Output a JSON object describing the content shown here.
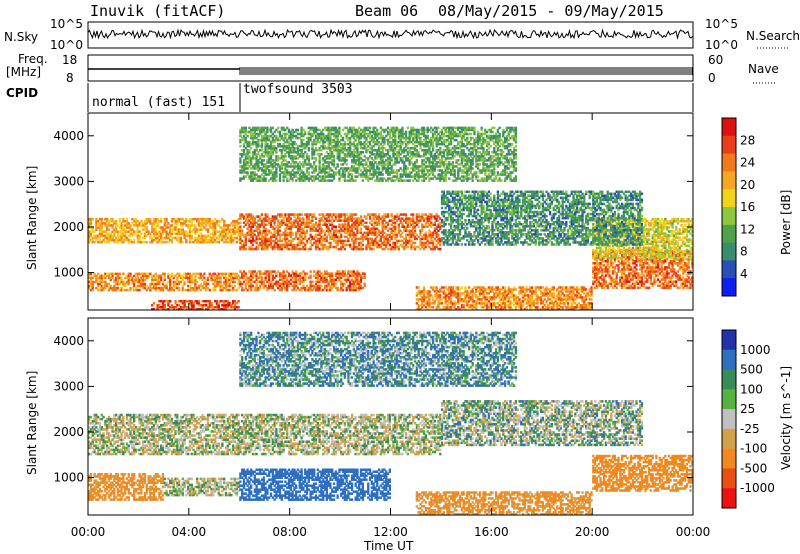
{
  "header": {
    "site": "Inuvik (fitACF)",
    "beam": "Beam 06",
    "date_range": "08/May/2015 - 09/May/2015"
  },
  "nsky_panel": {
    "left_label": "N.Sky",
    "right_label": "N.Search",
    "left_ticks": [
      "10^5",
      "10^0"
    ],
    "right_ticks": [
      "10^5",
      "10^0"
    ]
  },
  "freq_panel": {
    "left_label_1": "Freq.",
    "left_label_2": "[MHz]",
    "right_label": "Nave",
    "left_ticks": [
      "18",
      "8"
    ],
    "right_ticks": [
      "60",
      "0"
    ]
  },
  "cpid_panel": {
    "label": "CPID",
    "segments": [
      {
        "name": "normal (fast) 151",
        "start": "00:00",
        "end": "06:00"
      },
      {
        "name": "twofsound 3503",
        "start": "06:00",
        "end": "24:00"
      }
    ]
  },
  "colors": {
    "power": [
      "#0a1ff0",
      "#2a4fb8",
      "#3a8c6e",
      "#4fa24a",
      "#8dc63f",
      "#f2d21a",
      "#f5a623",
      "#f07a1a",
      "#e8401a",
      "#dd1111"
    ],
    "velocity": [
      "#2233aa",
      "#2f6fbf",
      "#3a8a5a",
      "#56b23f",
      "#c0c0c0",
      "#d2a14a",
      "#f08a20",
      "#e85010",
      "#ee1111"
    ]
  },
  "chart_data": [
    {
      "type": "heatmap",
      "title": "",
      "xlabel": "Time UT",
      "ylabel": "Slant Range [km]",
      "colorbar_label": "Power [dB]",
      "colorbar_ticks": [
        "28",
        "24",
        "20",
        "16",
        "12",
        "8",
        "4"
      ],
      "yticks": [
        "4000",
        "3000",
        "2000",
        "1000"
      ],
      "xticks": [
        "00:00",
        "04:00",
        "08:00",
        "12:00",
        "16:00",
        "20:00",
        "00:00"
      ],
      "ylim": [
        180,
        4500
      ],
      "xlim": [
        0,
        24
      ],
      "bands": [
        {
          "t0": 0,
          "t1": 6,
          "r0": 1650,
          "r1": 2200,
          "power": 20
        },
        {
          "t0": 0,
          "t1": 6,
          "r0": 600,
          "r1": 1000,
          "power": 22
        },
        {
          "t0": 2.5,
          "t1": 6,
          "r0": 180,
          "r1": 400,
          "power": 26
        },
        {
          "t0": 6,
          "t1": 14,
          "r0": 1500,
          "r1": 2300,
          "power": 24
        },
        {
          "t0": 6,
          "t1": 11,
          "r0": 600,
          "r1": 1050,
          "power": 24
        },
        {
          "t0": 13,
          "t1": 20,
          "r0": 180,
          "r1": 700,
          "power": 22
        },
        {
          "t0": 20,
          "t1": 24,
          "r0": 650,
          "r1": 1500,
          "power": 24
        },
        {
          "t0": 20,
          "t1": 24,
          "r0": 1300,
          "r1": 2200,
          "power": 16
        },
        {
          "t0": 14,
          "t1": 22,
          "r0": 1600,
          "r1": 2800,
          "power": 8
        },
        {
          "t0": 6,
          "t1": 17,
          "r0": 3000,
          "r1": 4200,
          "power": 10
        }
      ]
    },
    {
      "type": "heatmap",
      "title": "",
      "xlabel": "Time UT",
      "ylabel": "Slant Range [km]",
      "colorbar_label": "Velocity [m s^-1]",
      "colorbar_ticks": [
        "1000",
        "500",
        "100",
        "25",
        "-25",
        "-100",
        "-500",
        "-1000"
      ],
      "yticks": [
        "4000",
        "3000",
        "2000",
        "1000"
      ],
      "xticks": [
        "00:00",
        "04:00",
        "08:00",
        "12:00",
        "16:00",
        "20:00",
        "00:00"
      ],
      "ylim": [
        180,
        4500
      ],
      "xlim": [
        0,
        24
      ],
      "bands": [
        {
          "t0": 0,
          "t1": 14,
          "r0": 1500,
          "r1": 2400,
          "velocity": 0
        },
        {
          "t0": 0,
          "t1": 3,
          "r0": 500,
          "r1": 1100,
          "velocity": -150
        },
        {
          "t0": 3,
          "t1": 6,
          "r0": 600,
          "r1": 1000,
          "velocity": 0
        },
        {
          "t0": 6,
          "t1": 12,
          "r0": 500,
          "r1": 1200,
          "velocity": 300
        },
        {
          "t0": 13,
          "t1": 20,
          "r0": 180,
          "r1": 700,
          "velocity": -150
        },
        {
          "t0": 20,
          "t1": 24,
          "r0": 700,
          "r1": 1500,
          "velocity": -300
        },
        {
          "t0": 14,
          "t1": 22,
          "r0": 1700,
          "r1": 2700,
          "velocity": 30
        },
        {
          "t0": 6,
          "t1": 17,
          "r0": 3000,
          "r1": 4200,
          "velocity": 80
        }
      ]
    }
  ]
}
